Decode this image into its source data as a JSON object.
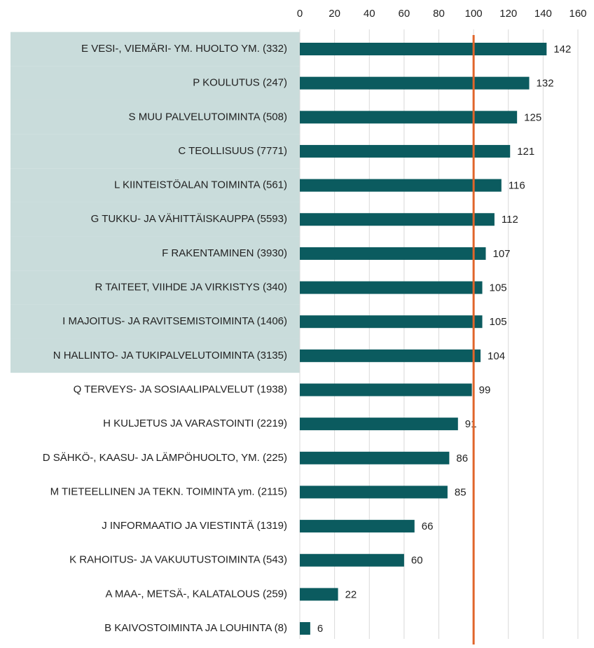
{
  "chart_data": {
    "type": "barh",
    "categories": [
      "E VESI-, VIEMÄRI- YM. HUOLTO YM. (332)",
      "P KOULUTUS (247)",
      "S MUU PALVELUTOIMINTA (508)",
      "C TEOLLISUUS (7771)",
      "L KIINTEISTÖALAN TOIMINTA (561)",
      "G TUKKU- JA VÄHITTÄISKAUPPA (5593)",
      "F RAKENTAMINEN (3930)",
      "R TAITEET, VIIHDE JA VIRKISTYS (340)",
      "I MAJOITUS- JA RAVITSEMISTOIMINTA (1406)",
      "N HALLINTO- JA TUKIPALVELUTOIMINTA (3135)",
      "Q TERVEYS- JA SOSIAALIPALVELUT (1938)",
      "H KULJETUS JA VARASTOINTI (2219)",
      "D SÄHKÖ-, KAASU- JA LÄMPÖHUOLTO, YM. (225)",
      "M TIETEELLINEN JA TEKN. TOIMINTA ym. (2115)",
      "J INFORMAATIO JA VIESTINTÄ (1319)",
      "K RAHOITUS- JA VAKUUTUSTOIMINTA (543)",
      "A MAA-, METSÄ-, KALATALOUS (259)",
      "B KAIVOSTOIMINTA JA LOUHINTA (8)"
    ],
    "values": [
      142,
      132,
      125,
      121,
      116,
      112,
      107,
      105,
      105,
      104,
      99,
      91,
      86,
      85,
      66,
      60,
      22,
      6
    ],
    "color": "#0b5b5f",
    "highlighted": [
      true,
      true,
      true,
      true,
      true,
      true,
      true,
      true,
      true,
      true,
      false,
      false,
      false,
      false,
      false,
      false,
      false,
      false
    ],
    "highlight_color": "#c9dcdb",
    "reference_line": 100,
    "reference_color": "#e0652a",
    "xlim": [
      0,
      160
    ],
    "xticks": [
      0,
      20,
      40,
      60,
      80,
      100,
      120,
      140,
      160
    ],
    "grid": true
  }
}
